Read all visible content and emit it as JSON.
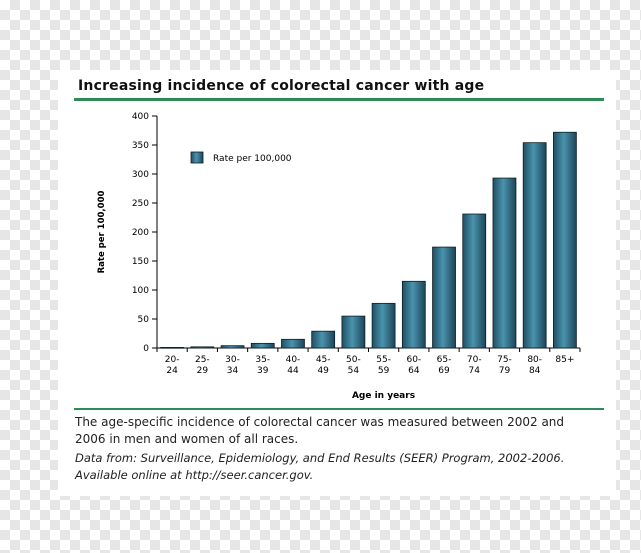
{
  "title": "Increasing incidence of colorectal cancer with age",
  "caption_line1": "The age-specific incidence of colorectal cancer was measured between 2002 and",
  "caption_line2": "2006 in men and women of all races.",
  "source_line1": "Data from: Surveillance, Epidemiology, and End Results (SEER) Program, 2002-2006.",
  "source_line2": "Available online at http://seer.cancer.gov.",
  "chart_data": {
    "type": "bar",
    "xlabel": "Age in years",
    "ylabel": "Rate per 100,000",
    "legend": "Rate per 100,000",
    "legend_position": "top-left",
    "ylim": [
      0,
      400
    ],
    "yticks": [
      0,
      50,
      100,
      150,
      200,
      250,
      300,
      350,
      400
    ],
    "categories": [
      [
        "20-",
        "24"
      ],
      [
        "25-",
        "29"
      ],
      [
        "30-",
        "34"
      ],
      [
        "35-",
        "39"
      ],
      [
        "40-",
        "44"
      ],
      [
        "45-",
        "49"
      ],
      [
        "50-",
        "54"
      ],
      [
        "55-",
        "59"
      ],
      [
        "60-",
        "64"
      ],
      [
        "65-",
        "69"
      ],
      [
        "70-",
        "74"
      ],
      [
        "75-",
        "79"
      ],
      [
        "80-",
        "84"
      ],
      [
        "85+",
        ""
      ]
    ],
    "values": [
      1,
      2,
      4,
      8,
      15,
      29,
      55,
      77,
      115,
      174,
      231,
      293,
      354,
      372
    ],
    "bar_color": "#3a7a93"
  }
}
